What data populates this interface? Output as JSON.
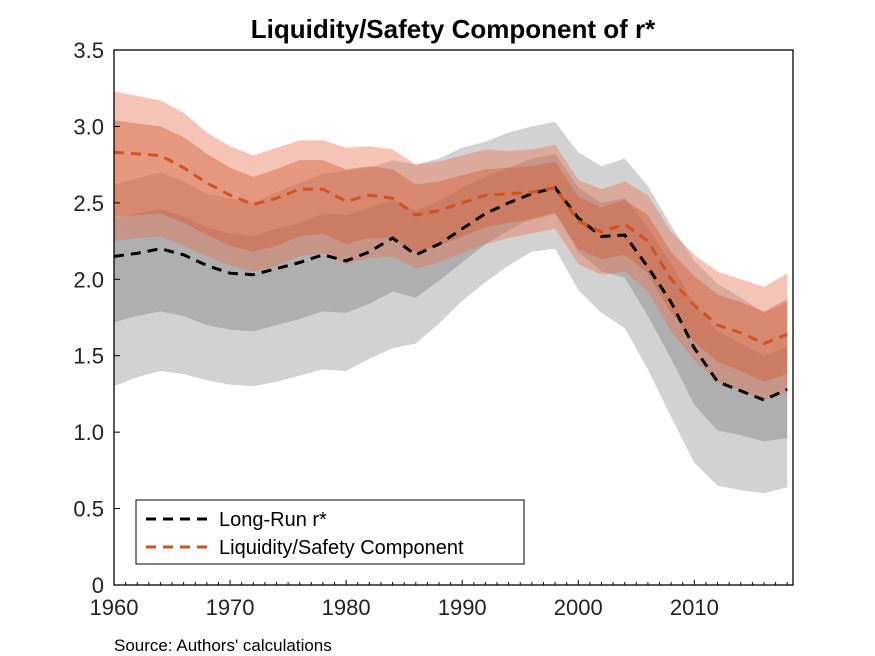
{
  "source_note": "Source: Authors' calculations",
  "chart_data": {
    "type": "area",
    "title": "Liquidity/Safety Component of r*",
    "xlabel": "",
    "ylabel": "",
    "xlim": [
      1960,
      2018.5
    ],
    "ylim": [
      0,
      3.5
    ],
    "x_ticks": [
      1960,
      1970,
      1980,
      1990,
      2000,
      2010
    ],
    "y_ticks": [
      "0",
      "0.5",
      "1.0",
      "1.5",
      "2.0",
      "2.5",
      "3.0",
      "3.5"
    ],
    "grid": false,
    "legend_position": "bottom-left",
    "x": [
      1960,
      1962,
      1964,
      1966,
      1968,
      1970,
      1972,
      1974,
      1976,
      1978,
      1980,
      1982,
      1984,
      1986,
      1988,
      1990,
      1992,
      1994,
      1996,
      1998,
      2000,
      2002,
      2004,
      2006,
      2008,
      2010,
      2012,
      2014,
      2016,
      2018
    ],
    "series": [
      {
        "name": "Long-Run r*",
        "color": "#000000",
        "values": [
          2.15,
          2.17,
          2.2,
          2.16,
          2.09,
          2.04,
          2.03,
          2.07,
          2.11,
          2.16,
          2.12,
          2.18,
          2.27,
          2.16,
          2.23,
          2.33,
          2.43,
          2.5,
          2.56,
          2.6,
          2.4,
          2.28,
          2.29,
          2.08,
          1.85,
          1.55,
          1.33,
          1.27,
          1.21,
          1.28
        ],
        "bands": [
          {
            "lower": [
              1.3,
              1.36,
              1.4,
              1.38,
              1.34,
              1.31,
              1.3,
              1.33,
              1.37,
              1.41,
              1.4,
              1.48,
              1.55,
              1.58,
              1.71,
              1.86,
              1.98,
              2.09,
              2.18,
              2.2,
              1.93,
              1.78,
              1.68,
              1.41,
              1.1,
              0.8,
              0.65,
              0.62,
              0.6,
              0.64
            ],
            "upper": [
              2.62,
              2.66,
              2.7,
              2.64,
              2.56,
              2.53,
              2.5,
              2.57,
              2.63,
              2.69,
              2.71,
              2.73,
              2.78,
              2.75,
              2.79,
              2.86,
              2.9,
              2.96,
              3.0,
              3.03,
              2.83,
              2.74,
              2.79,
              2.61,
              2.35,
              2.12,
              1.97,
              1.88,
              1.78,
              1.85
            ]
          },
          {
            "lower": [
              1.72,
              1.76,
              1.79,
              1.76,
              1.7,
              1.67,
              1.66,
              1.7,
              1.74,
              1.79,
              1.78,
              1.84,
              1.92,
              1.88,
              1.99,
              2.11,
              2.23,
              2.32,
              2.4,
              2.44,
              2.18,
              2.05,
              2.01,
              1.76,
              1.48,
              1.18,
              1.01,
              0.98,
              0.94,
              0.96
            ],
            "upper": [
              2.4,
              2.43,
              2.46,
              2.41,
              2.34,
              2.3,
              2.28,
              2.33,
              2.37,
              2.43,
              2.42,
              2.47,
              2.52,
              2.45,
              2.51,
              2.6,
              2.67,
              2.73,
              2.79,
              2.82,
              2.6,
              2.5,
              2.53,
              2.34,
              2.1,
              1.84,
              1.66,
              1.58,
              1.5,
              1.56
            ]
          }
        ]
      },
      {
        "name": "Liquidity/Safety Component",
        "color": "#d2521f",
        "values": [
          2.83,
          2.82,
          2.81,
          2.73,
          2.63,
          2.55,
          2.49,
          2.53,
          2.59,
          2.59,
          2.51,
          2.55,
          2.53,
          2.42,
          2.45,
          2.5,
          2.55,
          2.56,
          2.57,
          2.6,
          2.38,
          2.31,
          2.36,
          2.25,
          2.0,
          1.83,
          1.7,
          1.65,
          1.58,
          1.64
        ],
        "bands": [
          {
            "lower": [
              2.25,
              2.27,
              2.28,
              2.22,
              2.15,
              2.09,
              2.05,
              2.09,
              2.15,
              2.17,
              2.1,
              2.14,
              2.15,
              2.07,
              2.11,
              2.17,
              2.23,
              2.27,
              2.3,
              2.33,
              2.1,
              2.03,
              2.05,
              1.92,
              1.66,
              1.47,
              1.33,
              1.27,
              1.21,
              1.26
            ],
            "upper": [
              3.23,
              3.2,
              3.17,
              3.09,
              2.96,
              2.87,
              2.81,
              2.86,
              2.91,
              2.91,
              2.86,
              2.87,
              2.85,
              2.75,
              2.77,
              2.81,
              2.85,
              2.84,
              2.85,
              2.88,
              2.65,
              2.59,
              2.64,
              2.55,
              2.31,
              2.16,
              2.05,
              2.0,
              1.95,
              2.04
            ]
          },
          {
            "lower": [
              2.41,
              2.42,
              2.43,
              2.37,
              2.29,
              2.22,
              2.18,
              2.22,
              2.28,
              2.3,
              2.23,
              2.27,
              2.27,
              2.18,
              2.22,
              2.28,
              2.34,
              2.37,
              2.39,
              2.43,
              2.2,
              2.13,
              2.16,
              2.04,
              1.78,
              1.59,
              1.46,
              1.4,
              1.33,
              1.38
            ],
            "upper": [
              3.04,
              3.02,
              3.0,
              2.93,
              2.82,
              2.73,
              2.67,
              2.72,
              2.78,
              2.78,
              2.72,
              2.74,
              2.72,
              2.62,
              2.64,
              2.68,
              2.72,
              2.73,
              2.74,
              2.77,
              2.54,
              2.47,
              2.52,
              2.42,
              2.18,
              2.02,
              1.9,
              1.85,
              1.79,
              1.87
            ]
          }
        ]
      }
    ]
  }
}
